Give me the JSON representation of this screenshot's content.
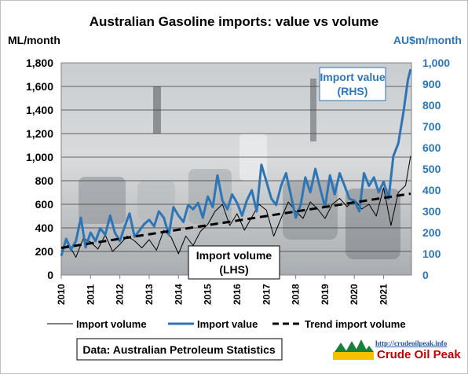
{
  "chart_data": {
    "type": "line",
    "title": "Australian Gasoline imports: value vs volume",
    "y_left_label": "ML/month",
    "y_right_label": "AU$m/month",
    "y_left_lim": [
      0,
      1800
    ],
    "y_right_lim": [
      0,
      1000
    ],
    "y_left_ticks": [
      "0",
      "200",
      "400",
      "600",
      "800",
      "1,000",
      "1,200",
      "1,400",
      "1,600",
      "1,800"
    ],
    "y_right_ticks": [
      "0",
      "100",
      "200",
      "300",
      "400",
      "500",
      "600",
      "700",
      "800",
      "900",
      "1,000"
    ],
    "x_ticks": [
      "2010",
      "2011",
      "2012",
      "2013",
      "2014",
      "2015",
      "2016",
      "2017",
      "2018",
      "2019",
      "2020",
      "2021"
    ],
    "x_range": [
      2010.0,
      2021.95
    ],
    "grid": true,
    "legend_position": "bottom",
    "annotations": [
      {
        "text_lines": [
          "Import value",
          "(RHS)"
        ],
        "color": "#2e75b6"
      },
      {
        "text_lines": [
          "Import volume",
          "(LHS)"
        ],
        "color": "#000000"
      }
    ],
    "source_text": "Data: Australian Petroleum Statistics",
    "logo": {
      "url_text": "http://crudeoilpeak.info",
      "name": "Crude Oil Peak"
    },
    "series": [
      {
        "name": "Import volume",
        "axis": "left",
        "color": "#000000",
        "style": "thin",
        "x": [
          2010.0,
          2010.25,
          2010.5,
          2010.75,
          2011.0,
          2011.25,
          2011.5,
          2011.75,
          2012.0,
          2012.25,
          2012.5,
          2012.75,
          2013.0,
          2013.25,
          2013.5,
          2013.75,
          2014.0,
          2014.25,
          2014.5,
          2014.75,
          2015.0,
          2015.25,
          2015.5,
          2015.75,
          2016.0,
          2016.25,
          2016.5,
          2016.75,
          2017.0,
          2017.25,
          2017.5,
          2017.75,
          2018.0,
          2018.25,
          2018.5,
          2018.75,
          2019.0,
          2019.25,
          2019.5,
          2019.75,
          2020.0,
          2020.25,
          2020.5,
          2020.75,
          2021.0,
          2021.25,
          2021.5,
          2021.75,
          2021.92
        ],
        "values": [
          200,
          260,
          150,
          310,
          280,
          220,
          340,
          200,
          260,
          330,
          290,
          230,
          300,
          210,
          380,
          320,
          180,
          330,
          250,
          370,
          430,
          540,
          600,
          420,
          520,
          380,
          490,
          600,
          550,
          330,
          480,
          620,
          540,
          480,
          620,
          560,
          480,
          600,
          650,
          580,
          640,
          560,
          600,
          500,
          740,
          420,
          700,
          760,
          1010
        ]
      },
      {
        "name": "Import value",
        "axis": "right",
        "color": "#2e75b6",
        "style": "thick",
        "x": [
          2010.0,
          2010.17,
          2010.33,
          2010.5,
          2010.67,
          2010.83,
          2011.0,
          2011.17,
          2011.33,
          2011.5,
          2011.67,
          2011.83,
          2012.0,
          2012.17,
          2012.33,
          2012.5,
          2012.67,
          2012.83,
          2013.0,
          2013.17,
          2013.33,
          2013.5,
          2013.67,
          2013.83,
          2014.0,
          2014.17,
          2014.33,
          2014.5,
          2014.67,
          2014.83,
          2015.0,
          2015.17,
          2015.33,
          2015.5,
          2015.67,
          2015.83,
          2016.0,
          2016.17,
          2016.33,
          2016.5,
          2016.67,
          2016.83,
          2017.0,
          2017.17,
          2017.33,
          2017.5,
          2017.67,
          2017.83,
          2018.0,
          2018.17,
          2018.33,
          2018.5,
          2018.67,
          2018.83,
          2019.0,
          2019.17,
          2019.33,
          2019.5,
          2019.67,
          2019.83,
          2020.0,
          2020.17,
          2020.33,
          2020.5,
          2020.67,
          2020.83,
          2021.0,
          2021.17,
          2021.33,
          2021.5,
          2021.67,
          2021.83,
          2021.92
        ],
        "values": [
          90,
          170,
          120,
          160,
          270,
          130,
          200,
          160,
          220,
          190,
          280,
          200,
          160,
          230,
          290,
          180,
          210,
          240,
          260,
          230,
          300,
          270,
          190,
          320,
          280,
          250,
          330,
          310,
          340,
          270,
          370,
          320,
          470,
          350,
          310,
          380,
          340,
          280,
          350,
          400,
          300,
          520,
          440,
          360,
          330,
          420,
          480,
          380,
          270,
          330,
          460,
          390,
          500,
          410,
          320,
          470,
          380,
          480,
          420,
          360,
          350,
          300,
          480,
          420,
          460,
          390,
          440,
          360,
          560,
          620,
          760,
          920,
          970
        ]
      },
      {
        "name": "Trend import volume",
        "axis": "left",
        "color": "#000000",
        "style": "dashed",
        "x": [
          2010.0,
          2021.92
        ],
        "values": [
          230,
          690
        ]
      }
    ]
  }
}
